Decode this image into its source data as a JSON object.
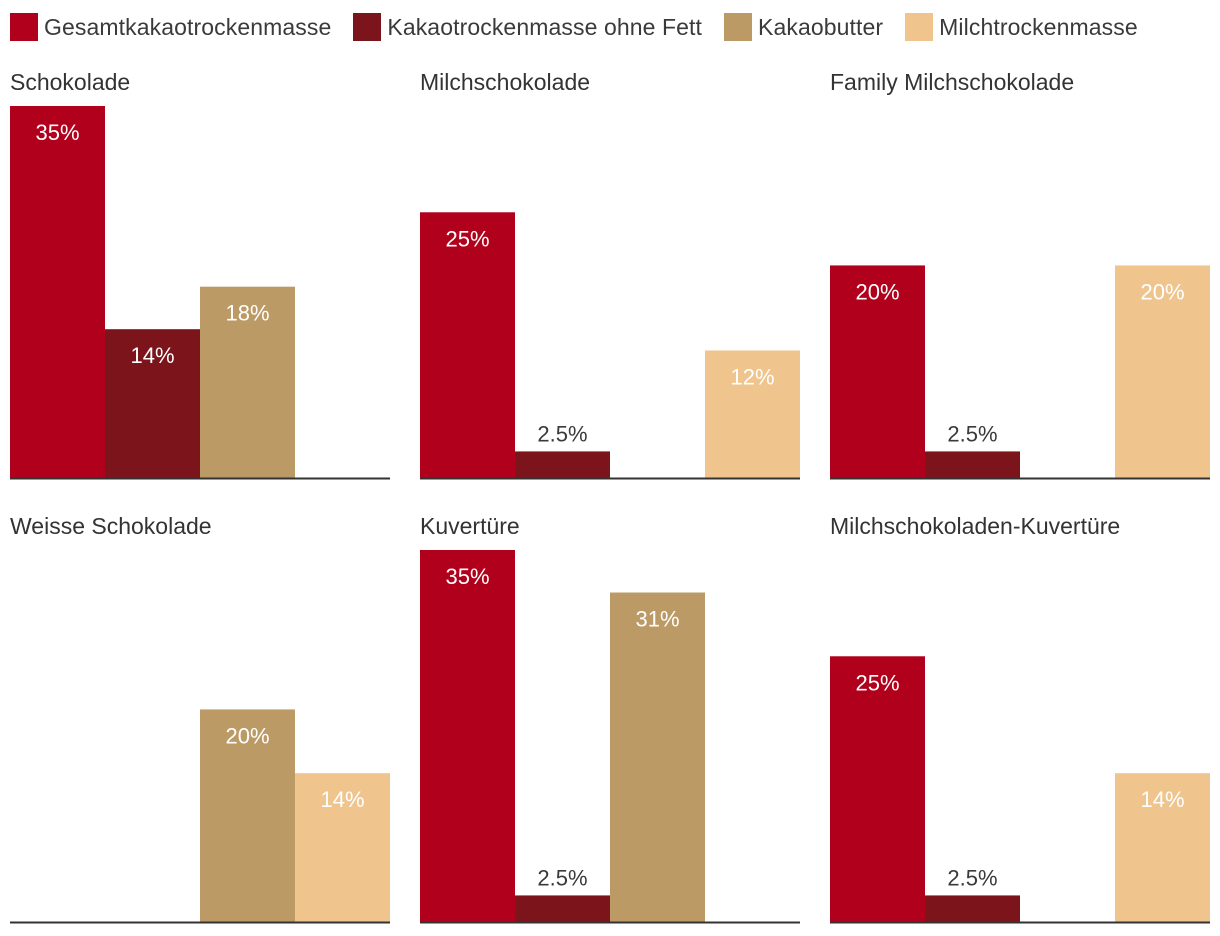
{
  "legend": [
    {
      "label": "Gesamtkakaotrockenmasse",
      "color": "#b1001c"
    },
    {
      "label": "Kakaotrockenmasse ohne Fett",
      "color": "#7b141b"
    },
    {
      "label": "Kakaobutter",
      "color": "#bc9a66"
    },
    {
      "label": "Milchtrockenmasse",
      "color": "#efc58d"
    }
  ],
  "chart_data": [
    {
      "type": "bar",
      "title": "Schokolade",
      "categories": [
        "Gesamtkakaotrockenmasse",
        "Kakaotrockenmasse ohne Fett",
        "Kakaobutter",
        "Milchtrockenmasse"
      ],
      "values": [
        35,
        14,
        18,
        null
      ],
      "labels": [
        "35%",
        "14%",
        "18%",
        ""
      ],
      "ylim": [
        0,
        35
      ]
    },
    {
      "type": "bar",
      "title": "Milchschokolade",
      "categories": [
        "Gesamtkakaotrockenmasse",
        "Kakaotrockenmasse ohne Fett",
        "Kakaobutter",
        "Milchtrockenmasse"
      ],
      "values": [
        25,
        2.5,
        null,
        12
      ],
      "labels": [
        "25%",
        "2.5%",
        "",
        "12%"
      ],
      "ylim": [
        0,
        35
      ]
    },
    {
      "type": "bar",
      "title": "Family Milchschokolade",
      "categories": [
        "Gesamtkakaotrockenmasse",
        "Kakaotrockenmasse ohne Fett",
        "Kakaobutter",
        "Milchtrockenmasse"
      ],
      "values": [
        20,
        2.5,
        null,
        20
      ],
      "labels": [
        "20%",
        "2.5%",
        "",
        "20%"
      ],
      "ylim": [
        0,
        35
      ]
    },
    {
      "type": "bar",
      "title": "Weisse Schokolade",
      "categories": [
        "Gesamtkakaotrockenmasse",
        "Kakaotrockenmasse ohne Fett",
        "Kakaobutter",
        "Milchtrockenmasse"
      ],
      "values": [
        null,
        null,
        20,
        14
      ],
      "labels": [
        "",
        "",
        "20%",
        "14%"
      ],
      "ylim": [
        0,
        35
      ]
    },
    {
      "type": "bar",
      "title": "Kuvertüre",
      "categories": [
        "Gesamtkakaotrockenmasse",
        "Kakaotrockenmasse ohne Fett",
        "Kakaobutter",
        "Milchtrockenmasse"
      ],
      "values": [
        35,
        2.5,
        31,
        null
      ],
      "labels": [
        "35%",
        "2.5%",
        "31%",
        ""
      ],
      "ylim": [
        0,
        35
      ]
    },
    {
      "type": "bar",
      "title": "Milchschokoladen-Kuvertüre",
      "categories": [
        "Gesamtkakaotrockenmasse",
        "Kakaotrockenmasse ohne Fett",
        "Kakaobutter",
        "Milchtrockenmasse"
      ],
      "values": [
        25,
        2.5,
        null,
        14
      ],
      "labels": [
        "25%",
        "2.5%",
        "",
        "14%"
      ],
      "ylim": [
        0,
        35
      ]
    }
  ]
}
